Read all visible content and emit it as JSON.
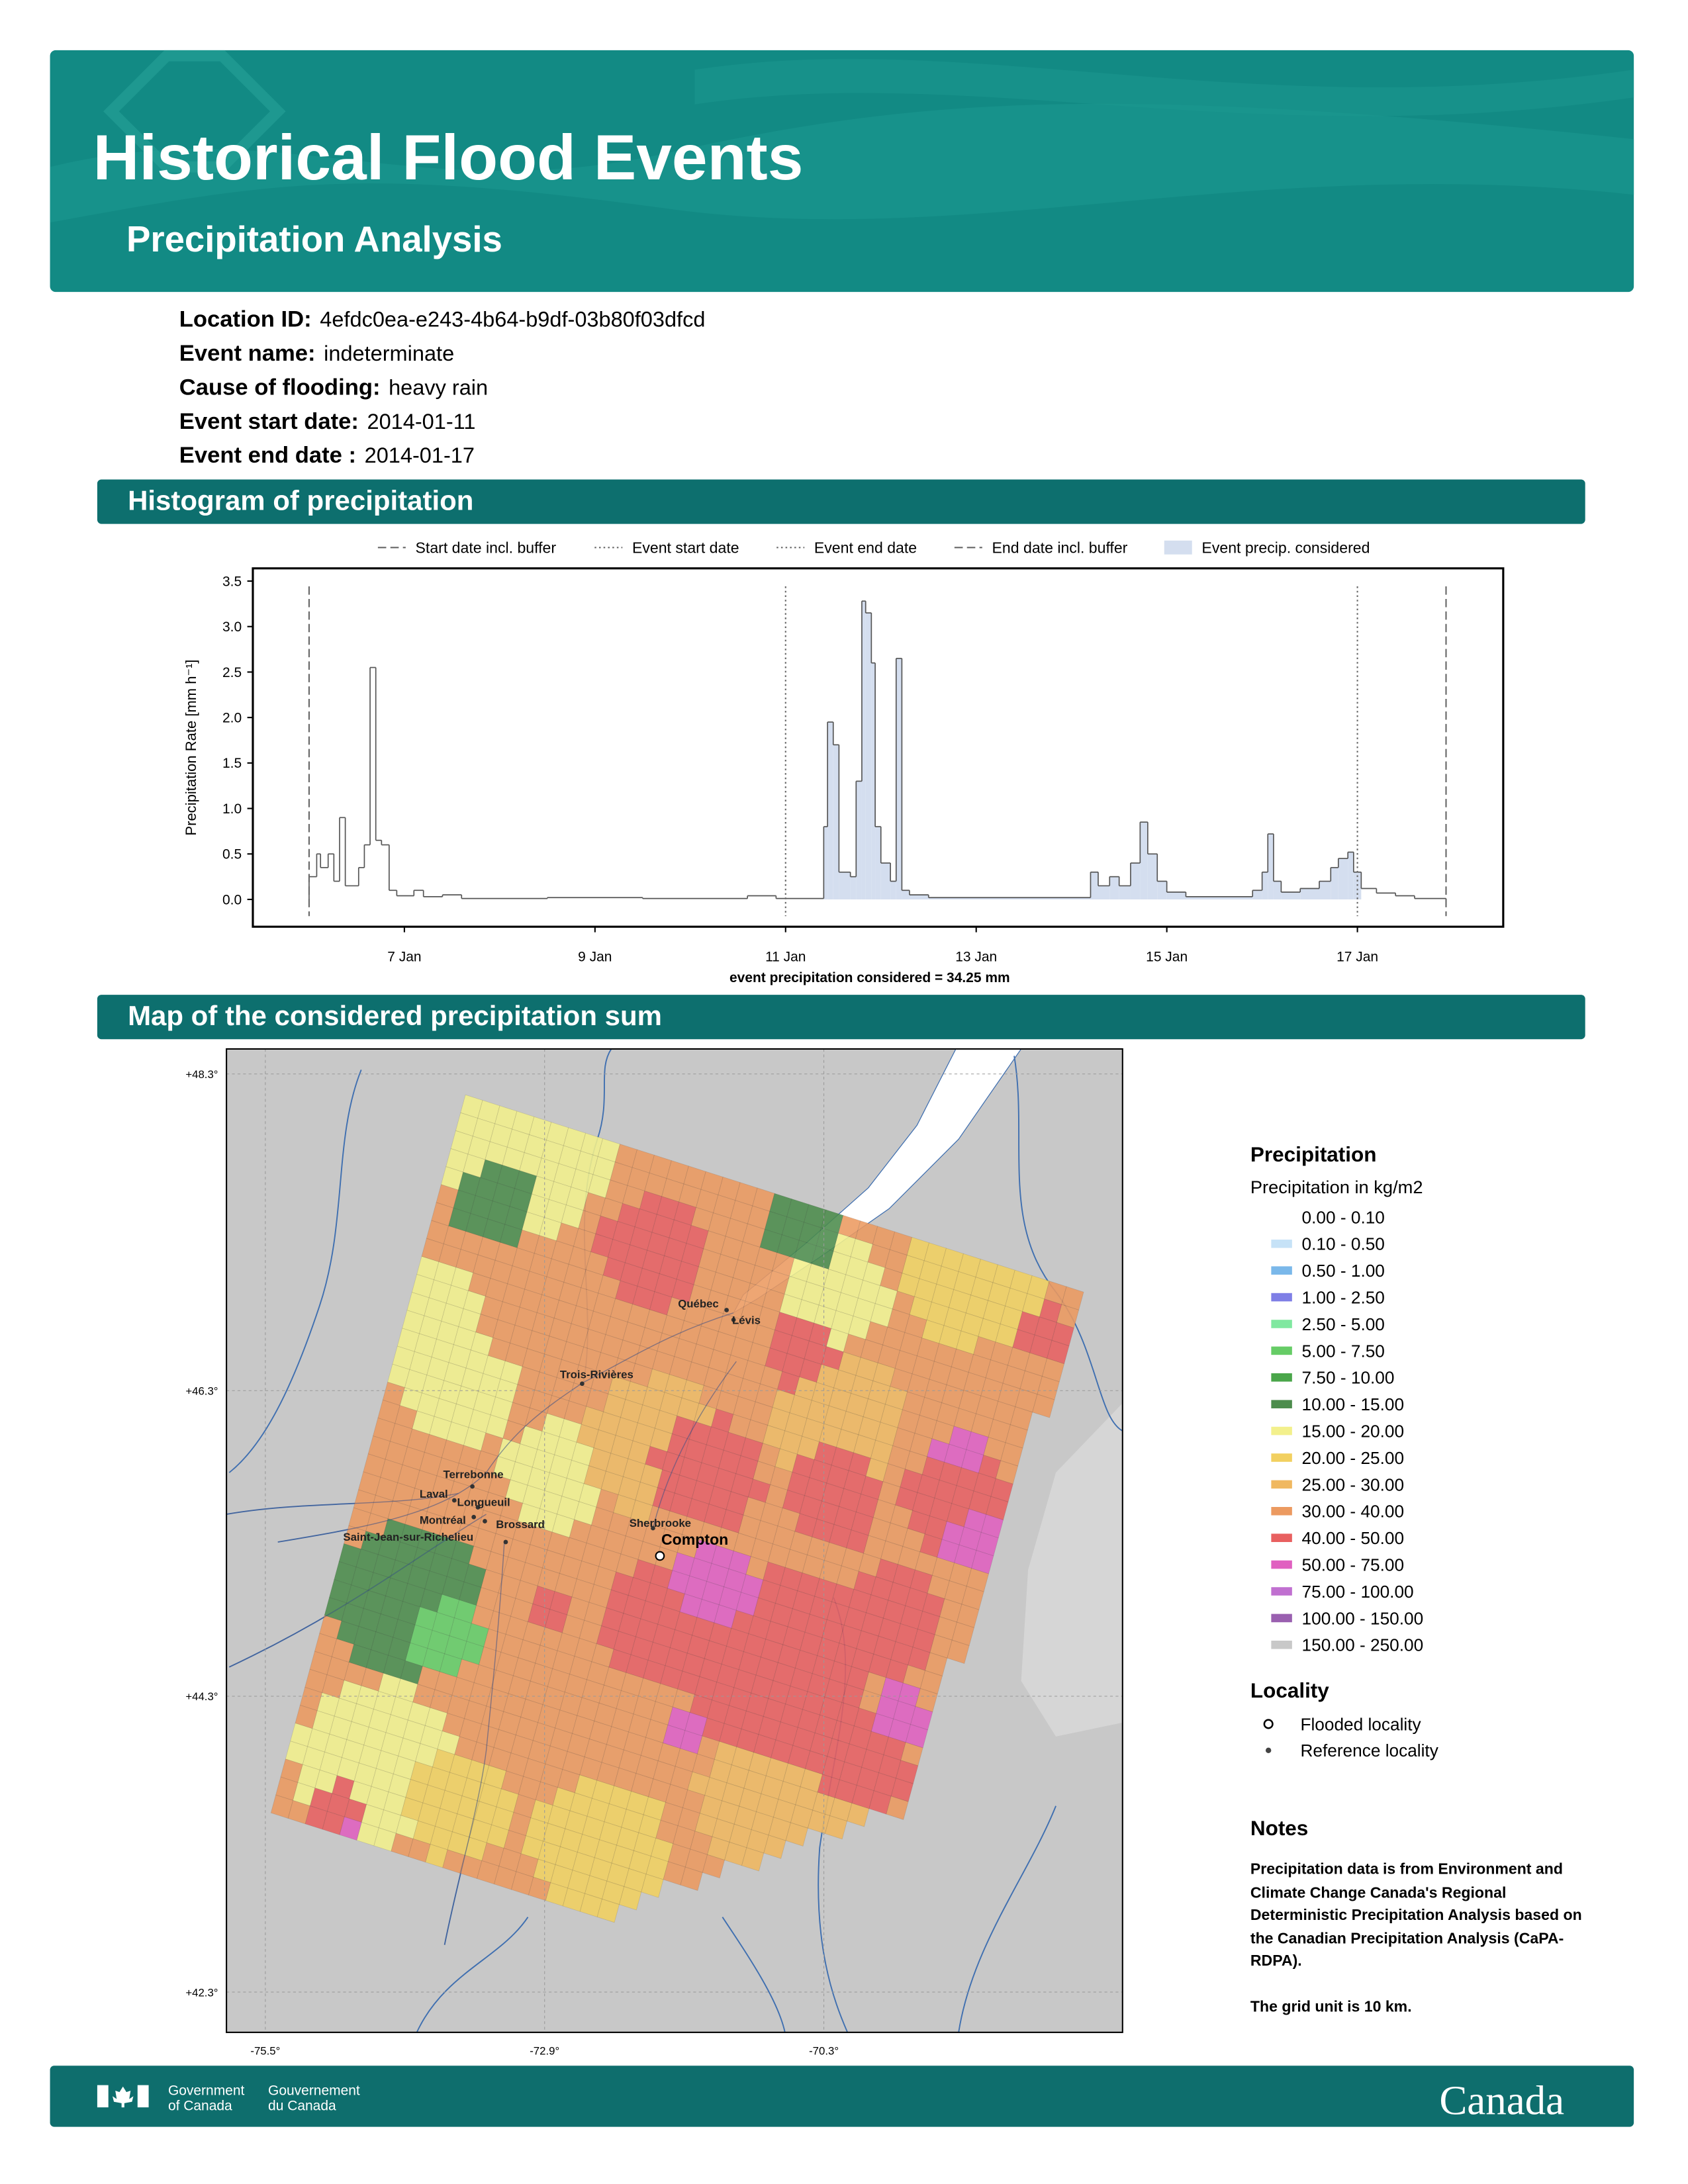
{
  "header": {
    "title": "Historical Flood Events",
    "subtitle": "Precipitation Analysis"
  },
  "fields": [
    {
      "label": "Location ID:",
      "value": "4efdc0ea-e243-4b64-b9df-03b80f03dfcd"
    },
    {
      "label": "Event name:",
      "value": "indeterminate"
    },
    {
      "label": "Cause of flooding:",
      "value": "heavy rain"
    },
    {
      "label": "Event start date:",
      "value": "2014-01-11"
    },
    {
      "label": "Event end date :",
      "value": "2014-01-17"
    }
  ],
  "sections": {
    "histogram": "Histogram of precipitation",
    "map": "Map of the considered precipitation sum"
  },
  "chart_data": {
    "type": "histogram",
    "ylabel": "Precipitation Rate [mm h⁻¹]",
    "xlabel": "event precipitation considered = 34.25 mm",
    "xlim": [
      5.41,
      18.53
    ],
    "ylim": [
      -0.3,
      3.64
    ],
    "xticks": [
      {
        "value": 7,
        "label": "7 Jan"
      },
      {
        "value": 9,
        "label": "9 Jan"
      },
      {
        "value": 11,
        "label": "11 Jan"
      },
      {
        "value": 13,
        "label": "13 Jan"
      },
      {
        "value": 15,
        "label": "15 Jan"
      },
      {
        "value": 17,
        "label": "17 Jan"
      }
    ],
    "yticks": [
      {
        "value": 0,
        "label": "0.0"
      },
      {
        "value": 0.5,
        "label": "0.5"
      },
      {
        "value": 1,
        "label": "1.0"
      },
      {
        "value": 1.5,
        "label": "1.5"
      },
      {
        "value": 2,
        "label": "2.0"
      },
      {
        "value": 2.5,
        "label": "2.5"
      },
      {
        "value": 3,
        "label": "3.0"
      },
      {
        "value": 3.5,
        "label": "3.5"
      }
    ],
    "bins": [
      6.0,
      6.08,
      6.12,
      6.2,
      6.26,
      6.32,
      6.38,
      6.52,
      6.58,
      6.64,
      6.7,
      6.76,
      6.84,
      6.92,
      7.1,
      7.2,
      7.4,
      7.6,
      8.5,
      9.5,
      10.6,
      10.9,
      11.4,
      11.44,
      11.5,
      11.56,
      11.68,
      11.74,
      11.8,
      11.84,
      11.9,
      11.94,
      12.0,
      12.1,
      12.16,
      12.22,
      12.3,
      12.5,
      14.2,
      14.28,
      14.4,
      14.5,
      14.62,
      14.72,
      14.8,
      14.9,
      15.0,
      15.2,
      15.9,
      16.0,
      16.06,
      16.12,
      16.2,
      16.4,
      16.6,
      16.72,
      16.8,
      16.9,
      16.96,
      17.04,
      17.2,
      17.4,
      17.6,
      17.93
    ],
    "values": [
      0.25,
      0.5,
      0.35,
      0.5,
      0.2,
      0.9,
      0.15,
      0.35,
      0.6,
      2.55,
      0.65,
      0.6,
      0.1,
      0.04,
      0.1,
      0.03,
      0.05,
      0.01,
      0.02,
      0.01,
      0.04,
      0.01,
      0.8,
      1.95,
      1.7,
      0.3,
      0.25,
      1.3,
      3.28,
      3.15,
      2.6,
      0.8,
      0.4,
      0.2,
      2.65,
      0.1,
      0.05,
      0.02,
      0.3,
      0.15,
      0.25,
      0.15,
      0.4,
      0.85,
      0.5,
      0.2,
      0.08,
      0.03,
      0.1,
      0.3,
      0.72,
      0.2,
      0.08,
      0.12,
      0.2,
      0.35,
      0.45,
      0.52,
      0.3,
      0.12,
      0.07,
      0.04,
      0.01
    ],
    "line_color": "#555555",
    "fill_color": "#d4deef",
    "fill_name": "Event precip. considered",
    "markers": [
      {
        "name": "Start date incl. buffer",
        "value": 6.0,
        "style": "dashed"
      },
      {
        "name": "Event start date",
        "value": 11.0,
        "style": "dotted"
      },
      {
        "name": "Event end date",
        "value": 17.0,
        "style": "dotted"
      },
      {
        "name": "End date incl. buffer",
        "value": 17.93,
        "style": "dashed"
      }
    ]
  },
  "map": {
    "lat_labels": [
      "+48.3°",
      "+46.3°",
      "+44.3°",
      "+42.3°"
    ],
    "lon_labels": [
      "-75.5°",
      "-72.9°",
      "-70.3°"
    ],
    "places": [
      "Québec",
      "Lévis",
      "Trois-Rivières",
      "Terrebonne",
      "Laval",
      "Longueuil",
      "Montréal",
      "Brossard",
      "Saint-Jean-sur-Richelieu",
      "Sherbrooke"
    ],
    "flooded_place": "Compton"
  },
  "legend": {
    "title": "Precipitation",
    "subtitle": "Precipitation in kg/m2",
    "classes": [
      {
        "label": "0.00 - 0.10",
        "color": "#ffffff"
      },
      {
        "label": "0.10 - 0.50",
        "color": "#c6e2f7"
      },
      {
        "label": "0.50 - 1.00",
        "color": "#7ab8ea"
      },
      {
        "label": "1.00 - 2.50",
        "color": "#7f7fe6"
      },
      {
        "label": "2.50 - 5.00",
        "color": "#80e8a0"
      },
      {
        "label": "5.00 - 7.50",
        "color": "#66cc66"
      },
      {
        "label": "7.50 - 10.00",
        "color": "#4aa64a"
      },
      {
        "label": "10.00 - 15.00",
        "color": "#4c8c4c"
      },
      {
        "label": "15.00 - 20.00",
        "color": "#f3f08c"
      },
      {
        "label": "20.00 - 25.00",
        "color": "#f2d060"
      },
      {
        "label": "25.00 - 30.00",
        "color": "#f0b860"
      },
      {
        "label": "30.00 - 40.00",
        "color": "#ec9a60"
      },
      {
        "label": "40.00 - 50.00",
        "color": "#e86060"
      },
      {
        "label": "50.00 - 75.00",
        "color": "#e060c0"
      },
      {
        "label": "75.00 - 100.00",
        "color": "#c070d0"
      },
      {
        "label": "100.00 - 150.00",
        "color": "#9a60b0"
      },
      {
        "label": "150.00 - 250.00",
        "color": "#c8c8c8"
      }
    ],
    "locality_title": "Locality",
    "locality_items": [
      "Flooded locality",
      "Reference locality"
    ]
  },
  "notes": {
    "title": "Notes",
    "paragraphs": [
      "Precipitation data is from Environment and Climate Change Canada's Regional Deterministic Precipitation Analysis based on the Canadian Precipitation Analysis (CaPA-RDPA).",
      "The grid unit is 10 km."
    ]
  },
  "footer": {
    "gov_en": [
      "Government",
      "of Canada"
    ],
    "gov_fr": [
      "Gouvernement",
      "du Canada"
    ],
    "wordmark": "Canada"
  }
}
